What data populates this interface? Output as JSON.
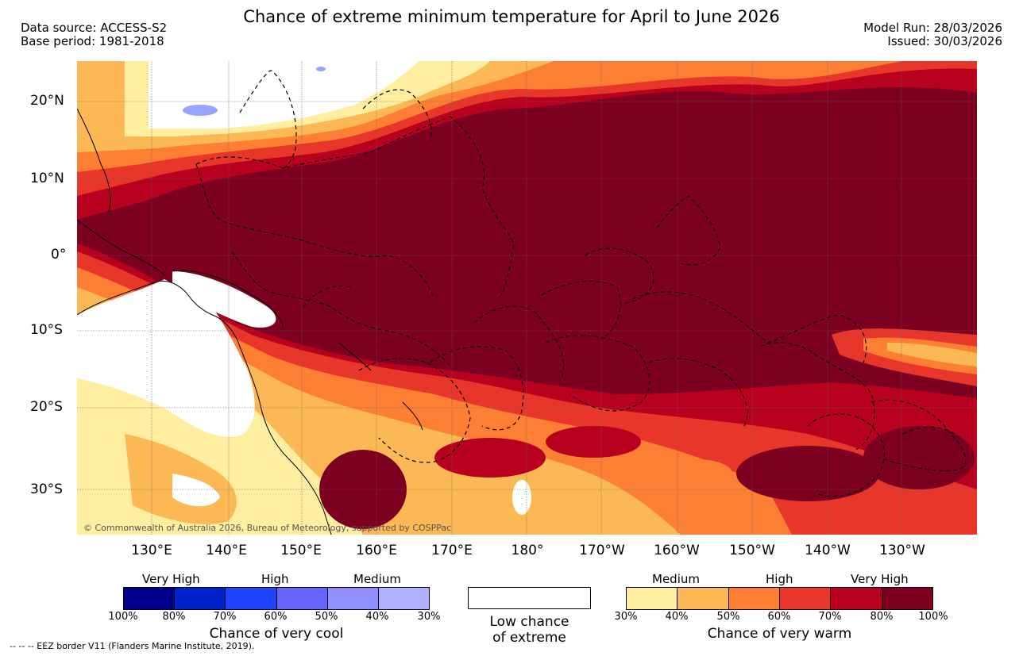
{
  "header": {
    "title": "Chance of extreme minimum temperature for April to June 2026",
    "data_source": "Data source: ACCESS-S2",
    "base_period": "Base period: 1981-2018",
    "model_run": "Model Run: 28/03/2026",
    "issued": "Issued: 30/03/2026"
  },
  "map": {
    "lat_labels": [
      "20°N",
      "10°N",
      "0°",
      "10°S",
      "20°S",
      "30°S"
    ],
    "lon_labels": [
      "130°E",
      "140°E",
      "150°E",
      "160°E",
      "170°E",
      "180°",
      "170°W",
      "160°W",
      "150°W",
      "140°W",
      "130°W"
    ],
    "copyright": "© Commonwealth of Australia 2026, Bureau of Meteorology, supported by COSPPac",
    "colors": {
      "very_high_warm": "#7d0021",
      "high_warm_80": "#b8001f",
      "orange_red": "#e8362a",
      "orange": "#fc7f33",
      "light_orange": "#fdb856",
      "pale_yellow": "#ffeda0",
      "land_fill": "#ffffff",
      "cool_patch": "#9aa2ff"
    }
  },
  "legend": {
    "cool": {
      "categories": [
        "Very High",
        "High",
        "Medium"
      ],
      "ticks": [
        "100%",
        "80%",
        "70%",
        "60%",
        "50%",
        "40%",
        "30%"
      ],
      "colors": [
        "#00008b",
        "#0022cc",
        "#2244ff",
        "#6666ff",
        "#8f8fff",
        "#b0b0ff"
      ],
      "label": "Chance of very cool"
    },
    "low": {
      "line1": "Low chance",
      "line2": "of extreme"
    },
    "warm": {
      "categories": [
        "Medium",
        "High",
        "Very High"
      ],
      "ticks": [
        "30%",
        "40%",
        "50%",
        "60%",
        "70%",
        "80%",
        "100%"
      ],
      "colors": [
        "#ffeda0",
        "#fdb856",
        "#fc7f33",
        "#e8362a",
        "#b8001f",
        "#7d0021"
      ],
      "label": "Chance of very warm"
    }
  },
  "footer": {
    "eez_note": "-- -- -- EEZ border V11 (Flanders Marine Institute, 2019)."
  }
}
